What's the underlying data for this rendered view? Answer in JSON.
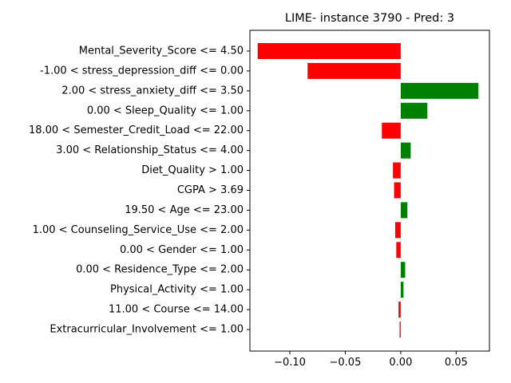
{
  "chart_data": {
    "type": "bar",
    "orientation": "horizontal",
    "title": "LIME- instance 3790 - Pred: 3",
    "xlabel": "",
    "ylabel": "",
    "xlim": [
      -0.136,
      0.08
    ],
    "xticks": [
      -0.1,
      -0.05,
      0.0,
      0.05
    ],
    "xtick_labels": [
      "−0.10",
      "−0.05",
      "0.00",
      "0.05"
    ],
    "grid": false,
    "colors": {
      "positive": "#008000",
      "negative": "#ff0000"
    },
    "categories": [
      "Mental_Severity_Score <= 4.50",
      "-1.00 < stress_depression_diff <= 0.00",
      "2.00 < stress_anxiety_diff <= 3.50",
      "0.00 < Sleep_Quality <= 1.00",
      "18.00 < Semester_Credit_Load <= 22.00",
      "3.00 < Relationship_Status <= 4.00",
      "Diet_Quality > 1.00",
      "CGPA > 3.69",
      "19.50 < Age <= 23.00",
      "1.00 < Counseling_Service_Use <= 2.00",
      "0.00 < Gender <= 1.00",
      "0.00 < Residence_Type <= 2.00",
      "Physical_Activity <= 1.00",
      "11.00 < Course <= 14.00",
      "Extracurricular_Involvement <= 1.00"
    ],
    "values": [
      -0.129,
      -0.084,
      0.07,
      0.024,
      -0.017,
      0.009,
      -0.007,
      -0.006,
      0.006,
      -0.005,
      -0.004,
      0.004,
      0.0025,
      -0.002,
      -0.001
    ]
  }
}
